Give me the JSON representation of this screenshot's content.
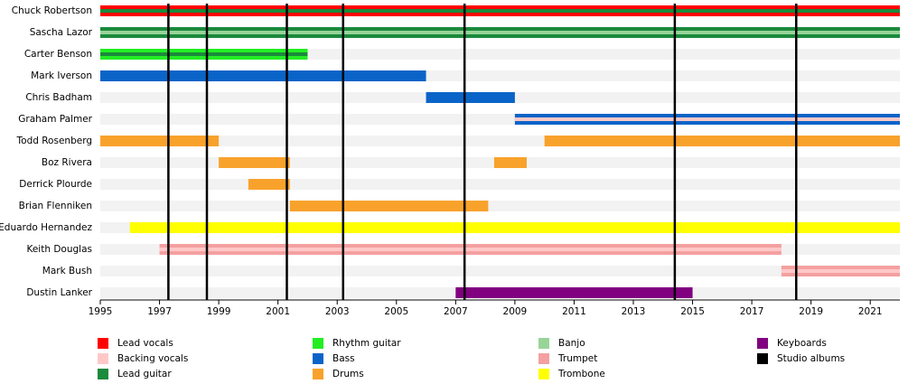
{
  "chart_data": {
    "type": "timeline",
    "xlim": [
      1995,
      2022
    ],
    "xticks": [
      1995,
      1997,
      1999,
      2001,
      2003,
      2005,
      2007,
      2009,
      2011,
      2013,
      2015,
      2017,
      2019,
      2021
    ],
    "roles": [
      {
        "name": "Lead vocals",
        "color": "#ff0000"
      },
      {
        "name": "Backing vocals",
        "color": "#ffc8c8"
      },
      {
        "name": "Lead guitar",
        "color": "#1b8a3c"
      },
      {
        "name": "Rhythm guitar",
        "color": "#22ee22"
      },
      {
        "name": "Bass",
        "color": "#0a64c8"
      },
      {
        "name": "Drums",
        "color": "#f8a22c"
      },
      {
        "name": "Banjo",
        "color": "#98d498"
      },
      {
        "name": "Trumpet",
        "color": "#f4a0a0"
      },
      {
        "name": "Trombone",
        "color": "#ffff00"
      },
      {
        "name": "Keyboards",
        "color": "#800080"
      },
      {
        "name": "Studio albums",
        "color": "#000000"
      }
    ],
    "members": [
      {
        "name": "Chuck Robertson",
        "periods": [
          {
            "start": 1995,
            "end": 2022,
            "role": "Lead vocals",
            "role2": "Lead guitar"
          }
        ]
      },
      {
        "name": "Sascha Lazor",
        "periods": [
          {
            "start": 1995,
            "end": 2022,
            "role": "Lead guitar",
            "role2": "Banjo"
          }
        ]
      },
      {
        "name": "Carter Benson",
        "periods": [
          {
            "start": 1995,
            "end": 2002,
            "role": "Rhythm guitar",
            "role2": "Lead guitar"
          }
        ]
      },
      {
        "name": "Mark Iverson",
        "periods": [
          {
            "start": 1995,
            "end": 2006,
            "role": "Bass"
          }
        ]
      },
      {
        "name": "Chris Badham",
        "periods": [
          {
            "start": 2006,
            "end": 2009,
            "role": "Bass"
          }
        ]
      },
      {
        "name": "Graham Palmer",
        "periods": [
          {
            "start": 2009,
            "end": 2022,
            "role": "Bass",
            "role2": "Backing vocals"
          }
        ]
      },
      {
        "name": "Todd Rosenberg",
        "periods": [
          {
            "start": 1995,
            "end": 1999,
            "role": "Drums"
          },
          {
            "start": 2010,
            "end": 2022,
            "role": "Drums"
          }
        ]
      },
      {
        "name": "Boz Rivera",
        "periods": [
          {
            "start": 1999,
            "end": 2001.4,
            "role": "Drums"
          },
          {
            "start": 2008.3,
            "end": 2009.4,
            "role": "Drums"
          }
        ]
      },
      {
        "name": "Derrick Plourde",
        "periods": [
          {
            "start": 2000,
            "end": 2001.4,
            "role": "Drums"
          }
        ]
      },
      {
        "name": "Brian Flenniken",
        "periods": [
          {
            "start": 2001.4,
            "end": 2008.1,
            "role": "Drums"
          }
        ]
      },
      {
        "name": "Eduardo Hernandez",
        "periods": [
          {
            "start": 1996,
            "end": 2022,
            "role": "Trombone"
          }
        ]
      },
      {
        "name": "Keith Douglas",
        "periods": [
          {
            "start": 1997,
            "end": 2018,
            "role": "Trumpet",
            "role2": "Backing vocals"
          }
        ]
      },
      {
        "name": "Mark Bush",
        "periods": [
          {
            "start": 2018,
            "end": 2022,
            "role": "Trumpet",
            "role2": "Backing vocals"
          }
        ]
      },
      {
        "name": "Dustin Lanker",
        "periods": [
          {
            "start": 2007,
            "end": 2015,
            "role": "Keyboards"
          }
        ]
      }
    ],
    "albums": [
      1997.3,
      1998.6,
      2001.3,
      2003.2,
      2007.3,
      2014.4,
      2018.5
    ]
  }
}
